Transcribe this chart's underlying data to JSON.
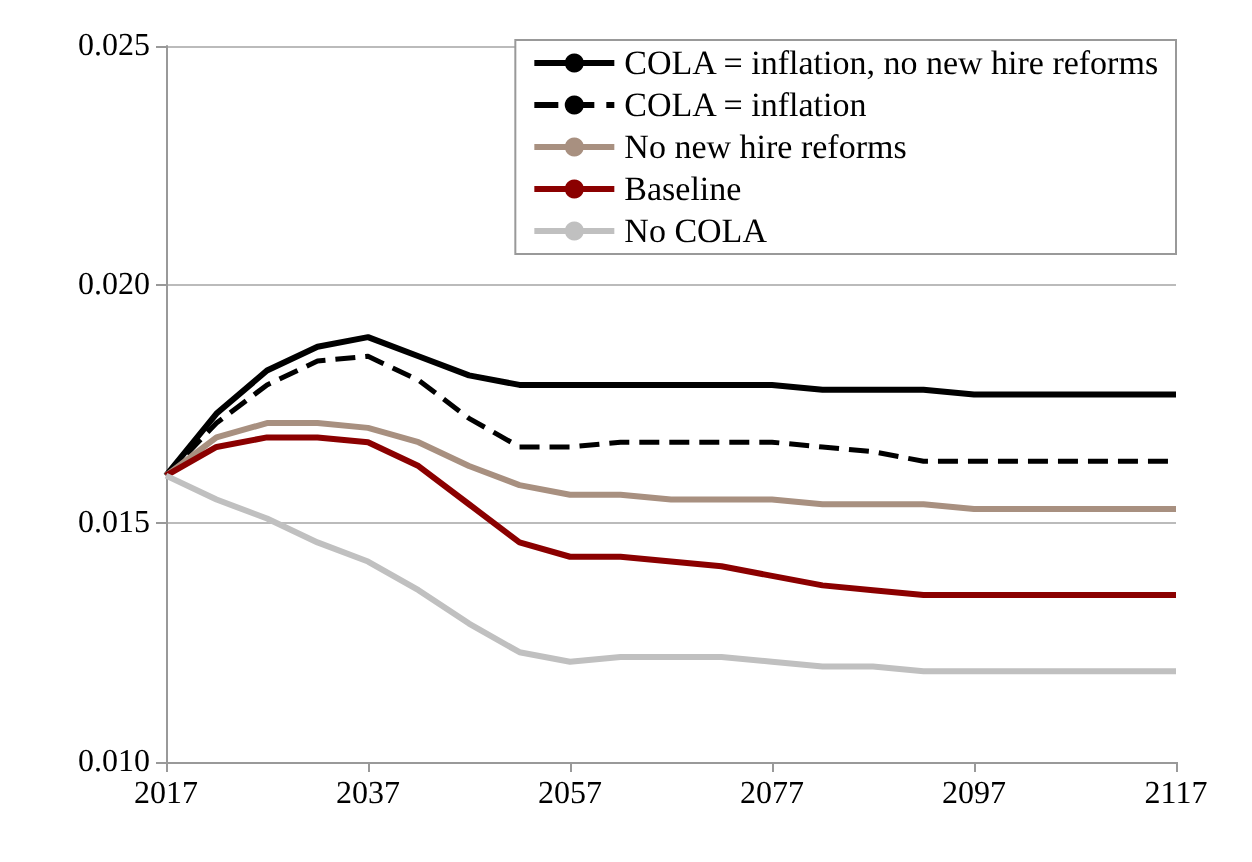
{
  "chart_data": {
    "type": "line",
    "x": [
      2017,
      2022,
      2027,
      2032,
      2037,
      2042,
      2047,
      2052,
      2057,
      2062,
      2067,
      2072,
      2077,
      2082,
      2087,
      2092,
      2097,
      2102,
      2107,
      2112,
      2117
    ],
    "series": [
      {
        "name": "COLA = inflation, no new hire reforms",
        "color": "#000000",
        "line_style": "solid",
        "values": [
          0.016,
          0.0173,
          0.0182,
          0.0187,
          0.0189,
          0.0185,
          0.0181,
          0.0179,
          0.0179,
          0.0179,
          0.0179,
          0.0179,
          0.0179,
          0.0178,
          0.0178,
          0.0178,
          0.0177,
          0.0177,
          0.0177,
          0.0177,
          0.0177
        ]
      },
      {
        "name": "COLA = inflation",
        "color": "#000000",
        "line_style": "dashed",
        "values": [
          0.016,
          0.0171,
          0.0179,
          0.0184,
          0.0185,
          0.018,
          0.0172,
          0.0166,
          0.0166,
          0.0167,
          0.0167,
          0.0167,
          0.0167,
          0.0166,
          0.0165,
          0.0163,
          0.0163,
          0.0163,
          0.0163,
          0.0163,
          0.0163
        ]
      },
      {
        "name": "No new hire reforms",
        "color": "#a89080",
        "line_style": "solid",
        "values": [
          0.016,
          0.0168,
          0.0171,
          0.0171,
          0.017,
          0.0167,
          0.0162,
          0.0158,
          0.0156,
          0.0156,
          0.0155,
          0.0155,
          0.0155,
          0.0154,
          0.0154,
          0.0154,
          0.0153,
          0.0153,
          0.0153,
          0.0153,
          0.0153
        ]
      },
      {
        "name": "Baseline",
        "color": "#8b0000",
        "line_style": "solid",
        "values": [
          0.016,
          0.0166,
          0.0168,
          0.0168,
          0.0167,
          0.0162,
          0.0154,
          0.0146,
          0.0143,
          0.0143,
          0.0142,
          0.0141,
          0.0139,
          0.0137,
          0.0136,
          0.0135,
          0.0135,
          0.0135,
          0.0135,
          0.0135,
          0.0135
        ]
      },
      {
        "name": "No COLA",
        "color": "#c0c0c0",
        "line_style": "solid",
        "values": [
          0.016,
          0.0155,
          0.0151,
          0.0146,
          0.0142,
          0.0136,
          0.0129,
          0.0123,
          0.0121,
          0.0122,
          0.0122,
          0.0122,
          0.0121,
          0.012,
          0.012,
          0.0119,
          0.0119,
          0.0119,
          0.0119,
          0.0119,
          0.0119
        ]
      }
    ],
    "xlim": [
      2017,
      2117
    ],
    "xticks": [
      2017,
      2037,
      2057,
      2077,
      2097,
      2117
    ],
    "ylim": [
      0.01,
      0.025
    ],
    "yticks": [
      {
        "value": 0.01,
        "label": "0.010"
      },
      0.015,
      {
        "value": 0.02,
        "label": "0.020"
      },
      0.025
    ],
    "grid": "y",
    "legend": "top right",
    "marker": "none"
  }
}
